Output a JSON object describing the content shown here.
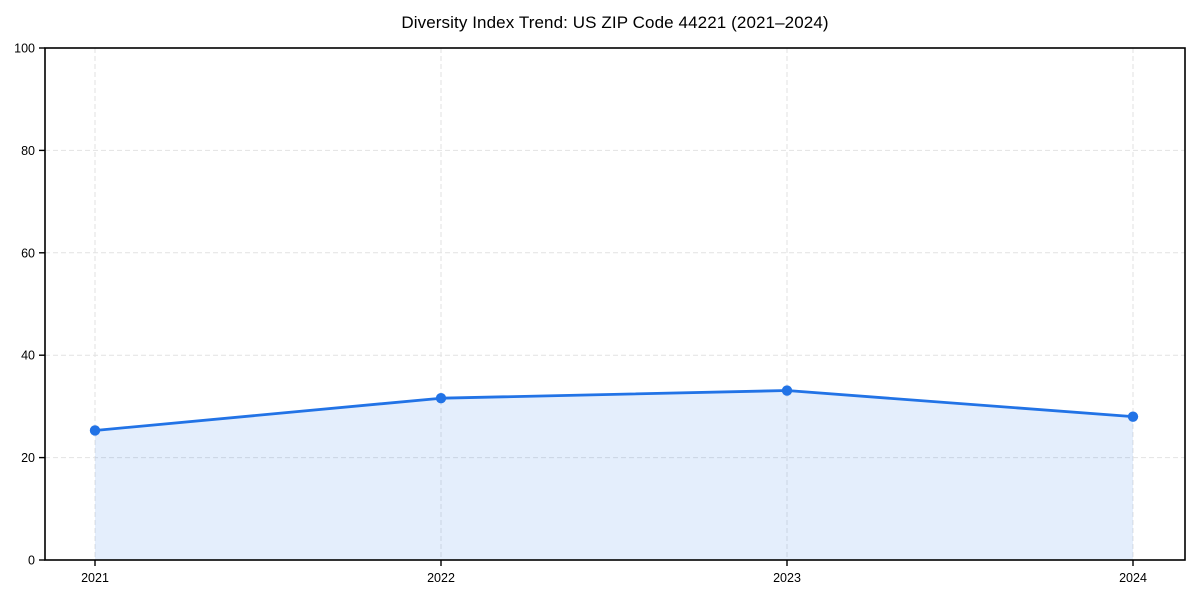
{
  "chart_data": {
    "type": "area",
    "title": "Diversity Index Trend: US ZIP Code 44221 (2021–2024)",
    "categories": [
      "2021",
      "2022",
      "2023",
      "2024"
    ],
    "series": [
      {
        "name": "Diversity Index",
        "values": [
          25.3,
          31.6,
          33.1,
          28.0
        ]
      }
    ],
    "xlabel": "",
    "ylabel": "",
    "ylim": [
      0,
      100
    ],
    "yticks": [
      0,
      20,
      40,
      60,
      80,
      100
    ],
    "grid": "dashed",
    "legend_position": "none",
    "colors": {
      "line": "#2273e6",
      "marker": "#2273e6",
      "fill": "rgba(34,115,230,0.12)",
      "grid": "#e2e2e2",
      "axis": "#000000",
      "tick_label": "#000000",
      "background": "#ffffff"
    }
  }
}
